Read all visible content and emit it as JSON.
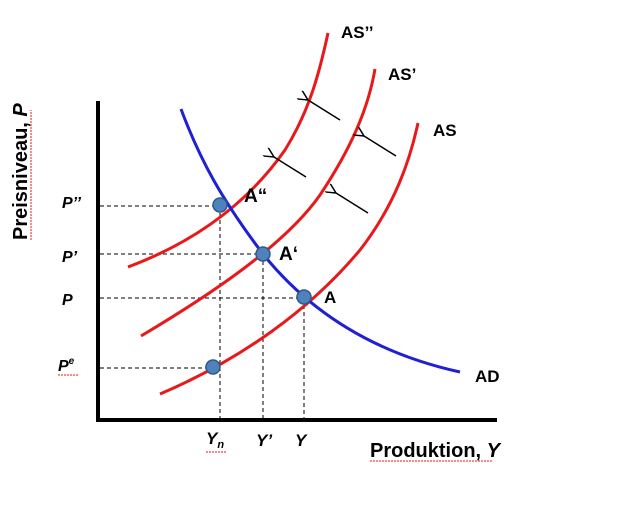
{
  "diagram": {
    "y_axis_label": "Preisniveau, P",
    "x_axis_label": "Produktion, Y",
    "curves": {
      "as": "AS",
      "as_prime": "AS’",
      "as_double_prime": "AS’’",
      "ad": "AD"
    },
    "points": {
      "a": "A",
      "a_prime": "A‘",
      "a_double_prime": "A“"
    },
    "price_levels": {
      "p_double_prime": "P’’",
      "p_prime": "P’",
      "p": "P",
      "p_expected": "Pe"
    },
    "output_levels": {
      "y_natural": "Yn",
      "y_prime": "Y’",
      "y": "Y"
    },
    "colors": {
      "as_curves": "#e8191b",
      "ad_curve": "#1f1fd6",
      "point_fill": "#4f81bd",
      "point_stroke": "#2e5a8a"
    }
  }
}
